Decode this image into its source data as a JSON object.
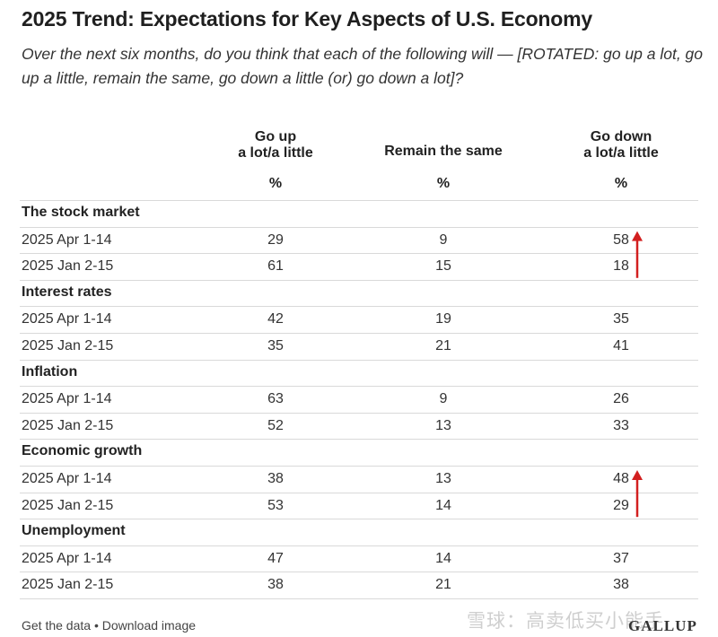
{
  "chart_data": {
    "type": "table",
    "title": "2025 Trend: Expectations for Key Aspects of U.S. Economy",
    "subtitle": "Over the next six months, do you think that each of the following will — [ROTATED: go up a lot, go up a little, remain the same, go down a little (or) go down a lot]?",
    "columns": [
      {
        "line1": "Go up",
        "line2": "a lot/a little",
        "unit": "%"
      },
      {
        "line1": "",
        "line2": "Remain the same",
        "unit": "%"
      },
      {
        "line1": "Go down",
        "line2": "a lot/a little",
        "unit": "%"
      }
    ],
    "sections": [
      {
        "name": "The stock market",
        "rows": [
          {
            "label": "2025 Apr 1-14",
            "values": [
              29,
              9,
              58
            ]
          },
          {
            "label": "2025 Jan 2-15",
            "values": [
              61,
              15,
              18
            ]
          }
        ]
      },
      {
        "name": "Interest rates",
        "rows": [
          {
            "label": "2025 Apr 1-14",
            "values": [
              42,
              19,
              35
            ]
          },
          {
            "label": "2025 Jan 2-15",
            "values": [
              35,
              21,
              41
            ]
          }
        ]
      },
      {
        "name": "Inflation",
        "rows": [
          {
            "label": "2025 Apr 1-14",
            "values": [
              63,
              9,
              26
            ]
          },
          {
            "label": "2025 Jan 2-15",
            "values": [
              52,
              13,
              33
            ]
          }
        ]
      },
      {
        "name": "Economic growth",
        "rows": [
          {
            "label": "2025 Apr 1-14",
            "values": [
              38,
              13,
              48
            ]
          },
          {
            "label": "2025 Jan 2-15",
            "values": [
              53,
              14,
              29
            ]
          }
        ]
      },
      {
        "name": "Unemployment",
        "rows": [
          {
            "label": "2025 Apr 1-14",
            "values": [
              47,
              14,
              37
            ]
          },
          {
            "label": "2025 Jan 2-15",
            "values": [
              38,
              21,
              38
            ]
          }
        ]
      }
    ],
    "annotations": [
      {
        "type": "arrow-up",
        "section": "The stock market",
        "color": "#d21f1f"
      },
      {
        "type": "arrow-up",
        "section": "Economic growth",
        "color": "#d21f1f"
      }
    ]
  },
  "footer": {
    "get_data": "Get the data",
    "separator": "•",
    "download": "Download image"
  },
  "watermark": "雪球：高卖低买小能手",
  "logo": "GALLUP"
}
